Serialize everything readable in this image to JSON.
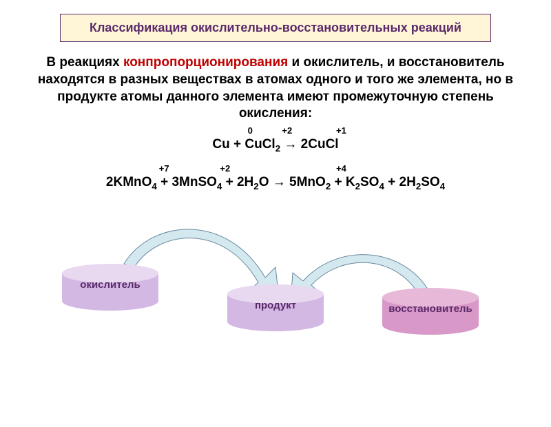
{
  "title": "Классификация окислительно-восстановительных реакций",
  "description": {
    "prefix": "В реакциях ",
    "redword": "конпропорционирования",
    "rest": " и окислитель, и восстановитель находятся в разных веществах в атомах одного и того же элемента, но в продукте атомы данного элемента имеют промежуточную степень окисления:"
  },
  "equation1": {
    "ox_states": [
      "0",
      "+2",
      "+1"
    ],
    "formula_html": "Cu + CuCl<sub>2</sub> → 2CuCl"
  },
  "equation2": {
    "ox_states": [
      "+7",
      "+2",
      "+4"
    ],
    "formula_html": "2KMnO<sub>4</sub> + 3MnSO<sub>4</sub> + 2H<sub>2</sub>O → 5MnO<sub>2</sub> + K<sub>2</sub>SO<sub>4</sub> + 2H<sub>2</sub>SO<sub>4</sub>"
  },
  "diagram": {
    "oxidizer": {
      "label": "окислитель",
      "top_color": "#e8d8f0",
      "side_color": "#d4b8e4",
      "text_color": "#5a2a6a"
    },
    "product": {
      "label": "продукт",
      "top_color": "#e8d8f0",
      "side_color": "#d4b8e4",
      "text_color": "#5a2a6a"
    },
    "reducer": {
      "label": "восстановитель",
      "top_color": "#e8b8d8",
      "side_color": "#d898c8",
      "text_color": "#5a2a6a"
    },
    "arrow_fill": "#d4e8f0",
    "arrow_stroke": "#6a8aa0"
  },
  "styling": {
    "title_bg": "#fff6d8",
    "title_border": "#5a2a6a",
    "title_color": "#5a2a6a",
    "redword_color": "#c00000",
    "body_text_color": "#000000",
    "font_family": "Arial",
    "title_fontsize": 18,
    "desc_fontsize": 19,
    "eq_fontsize": 19,
    "ox_fontsize": 13,
    "label_fontsize": 15
  }
}
